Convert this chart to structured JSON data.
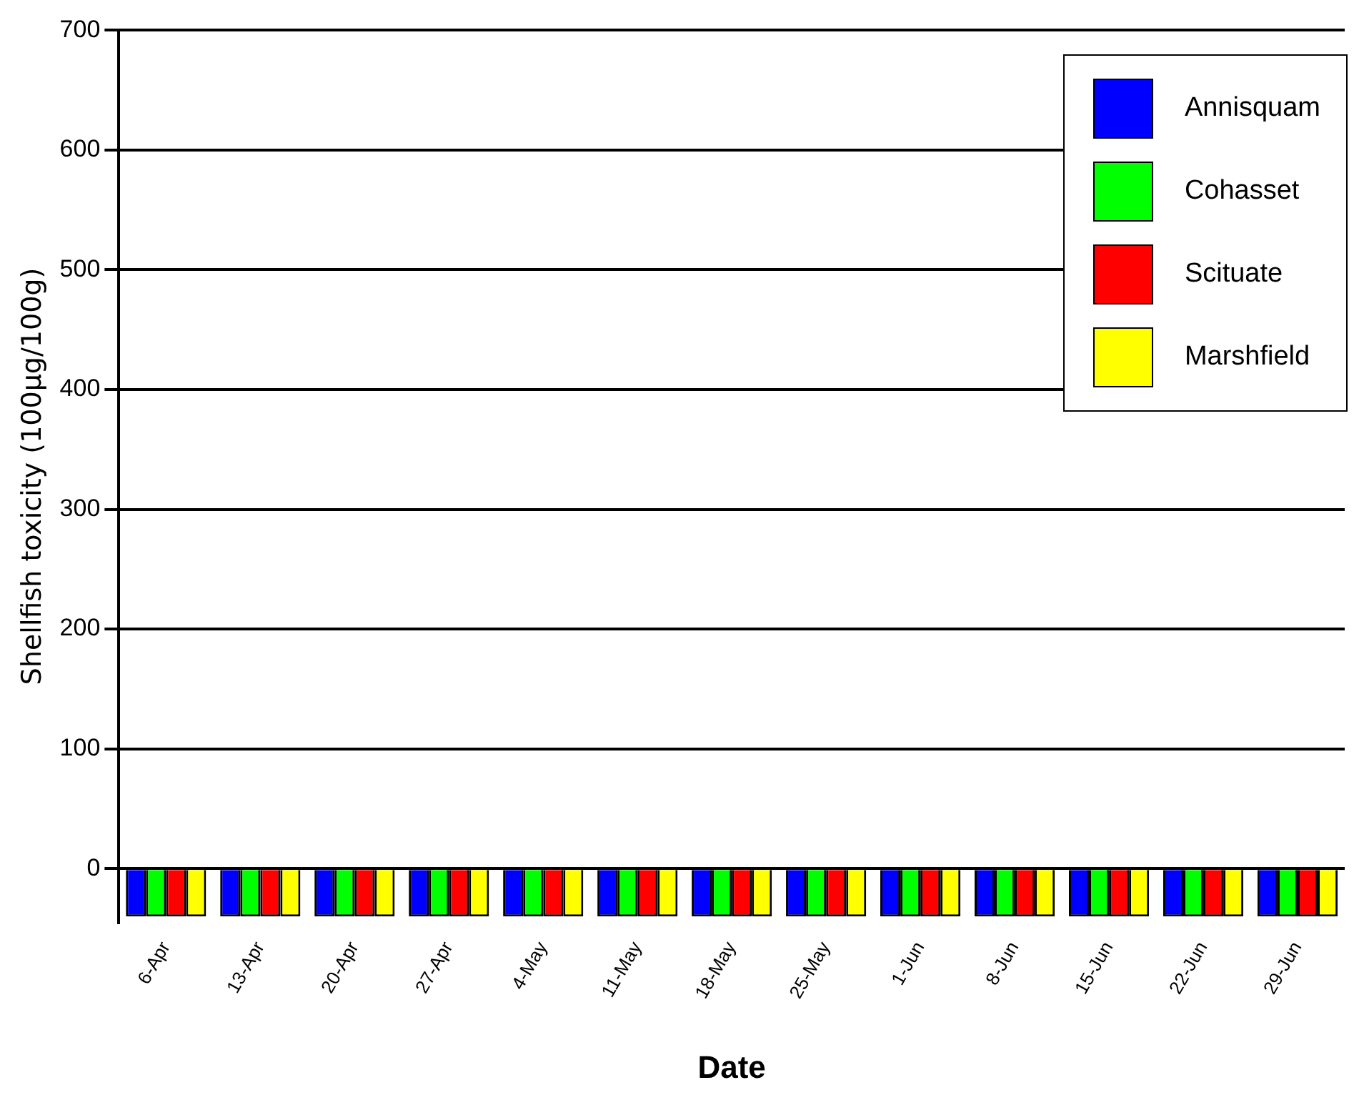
{
  "chart_data": {
    "type": "bar",
    "xlabel": "Date",
    "ylabel": "Shellfish toxicity (100µg/100g)",
    "categories": [
      "6-Apr",
      "13-Apr",
      "20-Apr",
      "27-Apr",
      "4-May",
      "11-May",
      "18-May",
      "25-May",
      "1-Jun",
      "8-Jun",
      "15-Jun",
      "22-Jun",
      "29-Jun"
    ],
    "series": [
      {
        "name": "Annisquam",
        "color": "#0000ff",
        "values": [
          -40,
          -40,
          -40,
          -40,
          -40,
          -40,
          -40,
          -40,
          -40,
          -40,
          -40,
          -40,
          -40
        ]
      },
      {
        "name": "Cohasset",
        "color": "#00ff00",
        "values": [
          -40,
          -40,
          -40,
          -40,
          -40,
          -40,
          -40,
          -40,
          -40,
          -40,
          -40,
          -40,
          -40
        ]
      },
      {
        "name": "Scituate",
        "color": "#ff0000",
        "values": [
          -40,
          -40,
          -40,
          -40,
          -40,
          -40,
          -40,
          -40,
          -40,
          -40,
          -40,
          -40,
          -40
        ]
      },
      {
        "name": "Marshfield",
        "color": "#ffff00",
        "values": [
          -40,
          -40,
          -40,
          -40,
          -40,
          -40,
          -40,
          -40,
          -40,
          -40,
          -40,
          -40,
          -40
        ]
      }
    ],
    "ylim": [
      -45,
      700
    ],
    "yticks": [
      0,
      100,
      200,
      300,
      400,
      500,
      600,
      700
    ],
    "grid": "y",
    "legend": "top right"
  }
}
